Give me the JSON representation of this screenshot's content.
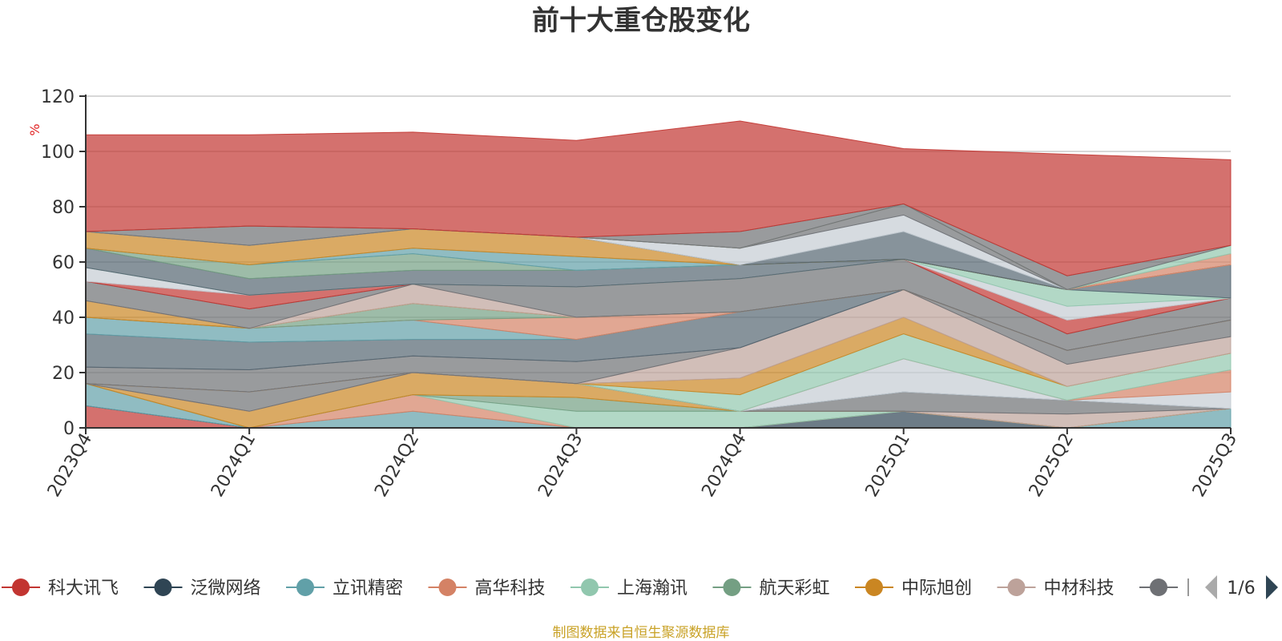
{
  "chart_data": {
    "type": "area",
    "title": "前十大重仓股变化",
    "ylabel": "%",
    "ylim": [
      0,
      120
    ],
    "yticks": [
      0,
      20,
      40,
      60,
      80,
      100,
      120
    ],
    "categories": [
      "2023Q4",
      "2024Q1",
      "2024Q2",
      "2024Q3",
      "2024Q4",
      "2025Q1",
      "2025Q2",
      "2025Q3"
    ],
    "grid": true,
    "legend_position": "bottom",
    "legend_page": "1/6",
    "source_note": "制图数据来自恒生聚源数据库",
    "series": [
      {
        "name": "科大讯飞",
        "color": "#c23531",
        "values": [
          8,
          0,
          0,
          0,
          0,
          0,
          0,
          0
        ]
      },
      {
        "name": "泛微网络",
        "color": "#2f4554",
        "values": [
          0,
          0,
          0,
          0,
          0,
          6,
          0,
          0
        ]
      },
      {
        "name": "立讯精密",
        "color": "#61a0a8",
        "values": [
          8,
          0,
          6,
          0,
          0,
          0,
          0,
          7
        ]
      },
      {
        "name": "高华科技",
        "color": "#d48265",
        "values": [
          0,
          0,
          6,
          0,
          0,
          0,
          0,
          0
        ]
      },
      {
        "name": "上海瀚讯",
        "color": "#91c7ae",
        "values": [
          0,
          0,
          0,
          6,
          6,
          0,
          0,
          0
        ]
      },
      {
        "name": "航天彩虹",
        "color": "#749f83",
        "values": [
          0,
          0,
          0,
          5,
          0,
          0,
          0,
          0
        ]
      },
      {
        "name": "中际旭创",
        "color": "#ca8622",
        "values": [
          0,
          6,
          8,
          5,
          0,
          0,
          0,
          0
        ]
      },
      {
        "name": "中材科技",
        "color": "#bda29a",
        "values": [
          0,
          0,
          0,
          0,
          0,
          0,
          5,
          0
        ]
      },
      {
        "color": "#6e7074",
        "values": [
          0,
          7,
          0,
          0,
          0,
          7,
          5,
          0
        ]
      },
      {
        "color": "#546570",
        "values": [
          0,
          0,
          0,
          0,
          0,
          0,
          0,
          0
        ]
      },
      {
        "color": "#c4ccd3",
        "values": [
          0,
          0,
          0,
          0,
          0,
          12,
          0,
          6
        ]
      },
      {
        "color": "#d48265",
        "values": [
          0,
          0,
          0,
          0,
          0,
          0,
          0,
          8
        ]
      },
      {
        "color": "#91c7ae",
        "values": [
          0,
          0,
          0,
          0,
          6,
          9,
          5,
          6
        ]
      },
      {
        "color": "#ca8622",
        "values": [
          0,
          0,
          0,
          0,
          6,
          6,
          0,
          0
        ]
      },
      {
        "color": "#bda29a",
        "values": [
          0,
          0,
          0,
          0,
          11,
          10,
          8,
          6
        ]
      },
      {
        "color": "#6e7074",
        "values": [
          6,
          8,
          6,
          8,
          0,
          0,
          5,
          6
        ]
      },
      {
        "color": "#546570",
        "values": [
          12,
          10,
          6,
          8,
          13,
          0,
          0,
          0
        ]
      },
      {
        "color": "#61a0a8",
        "values": [
          6,
          5,
          7,
          0,
          0,
          0,
          0,
          0
        ]
      },
      {
        "color": "#d48265",
        "values": [
          0,
          0,
          0,
          8,
          0,
          0,
          0,
          0
        ]
      },
      {
        "color": "#749f83",
        "values": [
          0,
          0,
          6,
          0,
          0,
          0,
          0,
          0
        ]
      },
      {
        "color": "#ca8622",
        "values": [
          6,
          0,
          0,
          0,
          0,
          0,
          0,
          0
        ]
      },
      {
        "color": "#bda29a",
        "values": [
          0,
          0,
          7,
          0,
          0,
          0,
          0,
          0
        ]
      },
      {
        "color": "#6e7074",
        "values": [
          7,
          7,
          0,
          11,
          12,
          11,
          6,
          8
        ]
      },
      {
        "color": "#c23531",
        "values": [
          0,
          5,
          0,
          0,
          0,
          0,
          5,
          0
        ]
      },
      {
        "color": "#c4ccd3",
        "values": [
          5,
          0,
          0,
          0,
          0,
          0,
          5,
          0
        ]
      },
      {
        "color": "#91c7ae",
        "values": [
          0,
          0,
          0,
          0,
          0,
          0,
          6,
          0
        ]
      },
      {
        "color": "#546570",
        "values": [
          7,
          6,
          5,
          6,
          5,
          0,
          0,
          12
        ]
      },
      {
        "color": "#749f83",
        "values": [
          0,
          5,
          6,
          0,
          0,
          0,
          0,
          0
        ]
      },
      {
        "color": "#61a0a8",
        "values": [
          0,
          0,
          2,
          5,
          0,
          0,
          0,
          0
        ]
      },
      {
        "color": "#ca8622",
        "values": [
          6,
          7,
          7,
          7,
          0,
          0,
          0,
          0
        ]
      },
      {
        "color": "#546570",
        "values": [
          0,
          0,
          0,
          0,
          0,
          10,
          0,
          0
        ]
      },
      {
        "color": "#c4ccd3",
        "values": [
          0,
          0,
          0,
          0,
          6,
          6,
          0,
          0
        ]
      },
      {
        "color": "#6e7074",
        "values": [
          0,
          7,
          0,
          0,
          0,
          4,
          0,
          0
        ]
      },
      {
        "color": "#bda29a",
        "values": [
          0,
          0,
          0,
          0,
          0,
          0,
          0,
          0
        ]
      },
      {
        "color": "#d48265",
        "values": [
          0,
          0,
          0,
          0,
          0,
          0,
          0,
          4
        ]
      },
      {
        "color": "#91c7ae",
        "values": [
          0,
          0,
          0,
          0,
          0,
          0,
          0,
          3
        ]
      },
      {
        "color": "#6e7074",
        "values": [
          0,
          0,
          0,
          0,
          6,
          0,
          5,
          0
        ]
      },
      {
        "color": "#c23531",
        "values": [
          35,
          33,
          35,
          35,
          40,
          20,
          44,
          31
        ]
      }
    ]
  }
}
